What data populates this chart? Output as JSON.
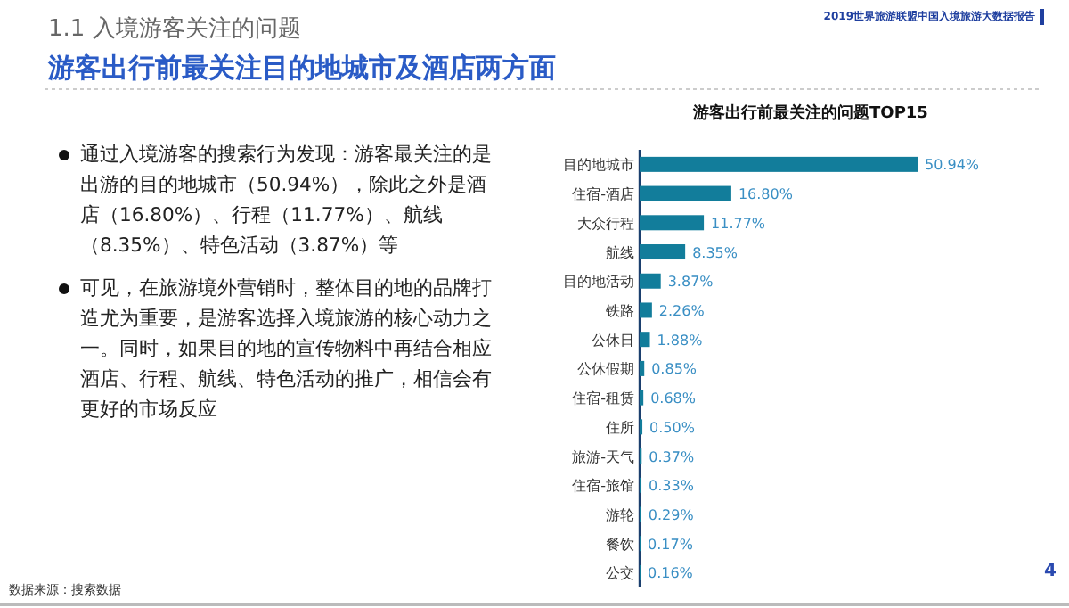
{
  "chart_data": {
    "type": "bar",
    "orientation": "horizontal",
    "title": "游客出行前最关注的问题TOP15",
    "categories": [
      "目的地城市",
      "住宿-酒店",
      "大众行程",
      "航线",
      "目的地活动",
      "铁路",
      "公休日",
      "公休假期",
      "住宿-租赁",
      "住所",
      "旅游-天气",
      "住宿-旅馆",
      "游轮",
      "餐饮",
      "公交"
    ],
    "values": [
      50.94,
      16.8,
      11.77,
      8.35,
      3.87,
      2.26,
      1.88,
      0.85,
      0.68,
      0.5,
      0.37,
      0.33,
      0.29,
      0.17,
      0.16
    ],
    "value_labels": [
      "50.94%",
      "16.80%",
      "11.77%",
      "8.35%",
      "3.87%",
      "2.26%",
      "1.88%",
      "0.85%",
      "0.68%",
      "0.50%",
      "0.37%",
      "0.33%",
      "0.29%",
      "0.17%",
      "0.16%"
    ],
    "color": "#127d9b",
    "annotations": [
      "2019世界旅游联盟中国入境旅游大数据报告",
      "1.1 入境游客关注的问题",
      "游客出行前最关注目的地城市及酒店两方面",
      "通过入境游客的搜索行为发现：游客最关注的是出游的目的地城市（50.94%），除此之外是酒店（16.80%）、行程（11.77%）、航线（8.35%）、特色活动（3.87%）等",
      "可见，在旅游境外营销时，整体目的地的品牌打造尤为重要，是游客选择入境旅游的核心动力之一。同时，如果目的地的宣传物料中再结合相应酒店、行程、航线、特色活动的推广，相信会有更好的市场反应",
      "数据来源：搜索数据",
      "4"
    ]
  }
}
